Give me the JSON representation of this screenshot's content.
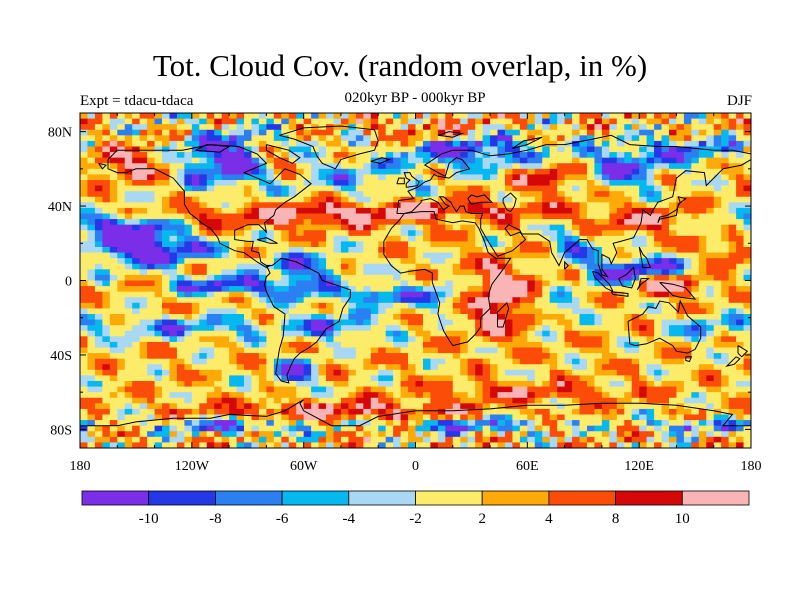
{
  "title": "Tot. Cloud Cov. (random overlap, in %)",
  "subtitle": "020kyr BP - 000kyr BP",
  "experiment": "Expt = tdacu-tdaca",
  "season": "DJF",
  "chart_data": {
    "type": "heatmap",
    "projection": "cylindrical-equidistant",
    "variable": "Total cloud cover difference (random overlap)",
    "units": "%",
    "xlim": [
      -180,
      180
    ],
    "ylim": [
      -90,
      90
    ],
    "x_ticks": [
      {
        "value": -180,
        "label": "180"
      },
      {
        "value": -120,
        "label": "120W"
      },
      {
        "value": -60,
        "label": "60W"
      },
      {
        "value": 0,
        "label": "0"
      },
      {
        "value": 60,
        "label": "60E"
      },
      {
        "value": 120,
        "label": "120E"
      },
      {
        "value": 180,
        "label": "180"
      }
    ],
    "y_ticks": [
      {
        "value": 80,
        "label": "80N"
      },
      {
        "value": 40,
        "label": "40N"
      },
      {
        "value": 0,
        "label": "0"
      },
      {
        "value": -40,
        "label": "40S"
      },
      {
        "value": -80,
        "label": "80S"
      }
    ],
    "colorbar": {
      "levels": [
        -10,
        -8,
        -6,
        -4,
        -2,
        2,
        4,
        8,
        10
      ],
      "labels": [
        "-10",
        "-8",
        "-6",
        "-4",
        "-2",
        "2",
        "4",
        "8",
        "10"
      ],
      "colors": [
        "#7b2ee8",
        "#2438e8",
        "#2c7ff0",
        "#05b8f0",
        "#a8d8f4",
        "#fdec6a",
        "#fdaa08",
        "#fb4c08",
        "#d40808",
        "#f9b4b6"
      ]
    }
  }
}
